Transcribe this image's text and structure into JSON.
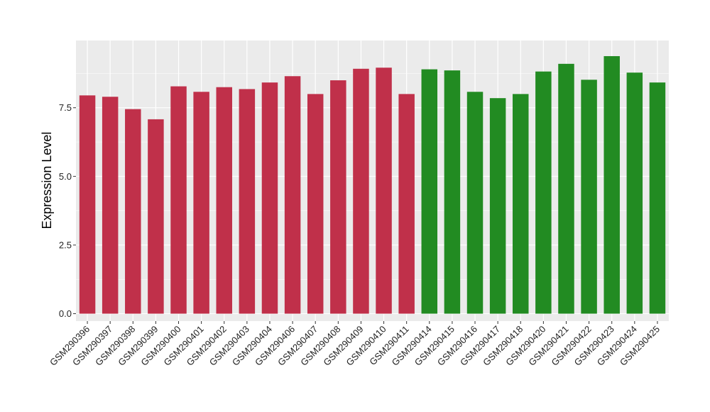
{
  "chart_data": {
    "type": "bar",
    "title": "",
    "xlabel": "",
    "ylabel": "Expression Level",
    "ylim": [
      -0.27,
      9.95
    ],
    "yticks": [
      0.0,
      2.5,
      5.0,
      7.5
    ],
    "ytick_labels": [
      "0.0",
      "2.5",
      "5.0",
      "7.5"
    ],
    "grid": true,
    "legend": "none",
    "colors": {
      "panel": "#EBEBEB",
      "grid": "#FFFFFF",
      "group1": "#C0304A",
      "group2": "#228B22"
    },
    "categories": [
      "GSM290396",
      "GSM290397",
      "GSM290398",
      "GSM290399",
      "GSM290400",
      "GSM290401",
      "GSM290402",
      "GSM290403",
      "GSM290404",
      "GSM290406",
      "GSM290407",
      "GSM290408",
      "GSM290409",
      "GSM290410",
      "GSM290411",
      "GSM290414",
      "GSM290415",
      "GSM290416",
      "GSM290417",
      "GSM290418",
      "GSM290420",
      "GSM290421",
      "GSM290422",
      "GSM290423",
      "GSM290424",
      "GSM290425"
    ],
    "values": [
      7.95,
      7.9,
      7.45,
      7.08,
      8.28,
      8.08,
      8.25,
      8.18,
      8.42,
      8.65,
      8.0,
      8.5,
      8.92,
      8.96,
      8.0,
      8.9,
      8.86,
      8.08,
      7.85,
      8.0,
      8.82,
      9.1,
      8.52,
      9.38,
      8.78,
      8.42
    ],
    "groups": [
      "group1",
      "group1",
      "group1",
      "group1",
      "group1",
      "group1",
      "group1",
      "group1",
      "group1",
      "group1",
      "group1",
      "group1",
      "group1",
      "group1",
      "group1",
      "group2",
      "group2",
      "group2",
      "group2",
      "group2",
      "group2",
      "group2",
      "group2",
      "group2",
      "group2",
      "group2"
    ]
  }
}
